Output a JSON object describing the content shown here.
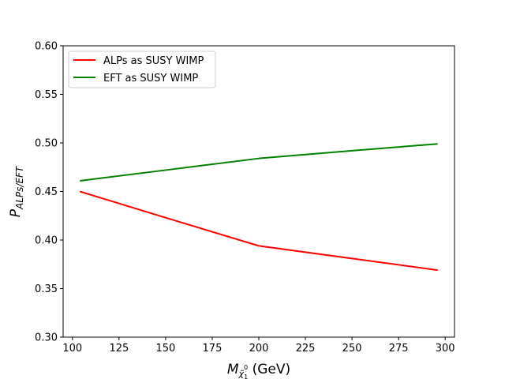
{
  "chart_data": {
    "type": "line",
    "xlabel_main": "M",
    "xlabel_sub": "χ̃",
    "xlabel_sub_sup": "0",
    "xlabel_sub_index": "1",
    "xlabel_unit": " (GeV)",
    "ylabel_main": "P",
    "ylabel_sub": "ALPs/EFT",
    "xlim": [
      95,
      305
    ],
    "ylim": [
      0.3,
      0.6
    ],
    "xticks": [
      100,
      125,
      150,
      175,
      200,
      225,
      250,
      275,
      300
    ],
    "yticks": [
      0.3,
      0.35,
      0.4,
      0.45,
      0.5,
      0.55,
      0.6
    ],
    "ytick_labels": [
      "0.30",
      "0.35",
      "0.40",
      "0.45",
      "0.50",
      "0.55",
      "0.60"
    ],
    "grid": false,
    "legend_position": "top-left",
    "series": [
      {
        "name": "ALPs as SUSY WIMP",
        "color": "#ff0000",
        "x": [
          104,
          150,
          200,
          250,
          296
        ],
        "y": [
          0.45,
          0.423,
          0.394,
          0.381,
          0.369
        ]
      },
      {
        "name": "EFT as SUSY WIMP",
        "color": "#008000",
        "x": [
          104,
          150,
          200,
          250,
          296
        ],
        "y": [
          0.461,
          0.472,
          0.484,
          0.492,
          0.499
        ]
      }
    ]
  }
}
